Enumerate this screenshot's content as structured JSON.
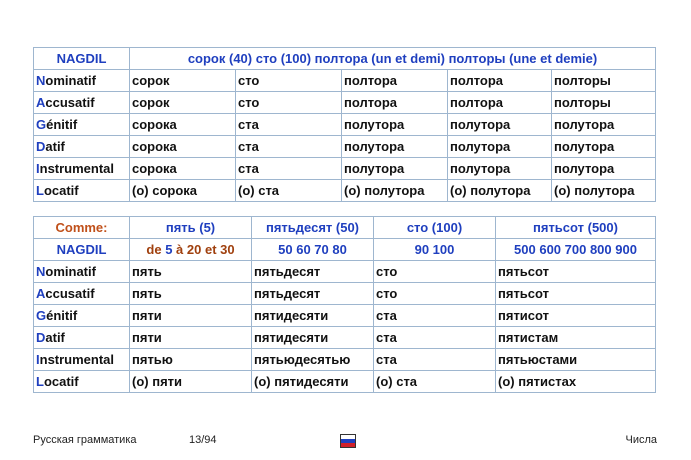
{
  "table1": {
    "header": [
      "NAGDIL",
      "сорок (40) сто (100) полтора (un et demi) полторы (une et demie)"
    ],
    "rows": [
      {
        "lead": "N",
        "case": "ominatif",
        "cells": [
          "сорок",
          "сто",
          "полтора",
          "полтора",
          "полторы"
        ]
      },
      {
        "lead": "A",
        "case": "ccusatif",
        "cells": [
          "сорок",
          "сто",
          "полтора",
          "полтора",
          "полторы"
        ]
      },
      {
        "lead": "G",
        "case": "énitif",
        "cells": [
          "сорока",
          "ста",
          "полутора",
          "полутора",
          "полутора"
        ]
      },
      {
        "lead": "D",
        "case": "atif",
        "cells": [
          "сорока",
          "ста",
          "полутора",
          "полутора",
          "полутора"
        ]
      },
      {
        "lead": "I",
        "case": "nstrumental",
        "cells": [
          "сорока",
          "ста",
          "полутора",
          "полутора",
          "полутора"
        ]
      },
      {
        "lead": "L",
        "case": "ocatif",
        "cells": [
          "(о) сорока",
          "(о) ста",
          "(о) полутора",
          "(о) полутора",
          "(о) полутора"
        ]
      }
    ]
  },
  "table2": {
    "comme_row": [
      "Comme:",
      "пять (5)",
      "пятьдесят (50)",
      "сто (100)",
      "пятьсот (500)"
    ],
    "nagdil_row": {
      "label": "NAGDIL",
      "c1_prefix": "de ",
      "c1_a": "5",
      "c1_mid": " à ",
      "c1_b": "20 et 30",
      "c2": "50 60 70 80",
      "c3": "90 100",
      "c4": "500 600 700 800 900"
    },
    "rows": [
      {
        "lead": "N",
        "case": "ominatif",
        "cells": [
          "пять",
          "пятьдесят",
          "сто",
          "пятьсот"
        ]
      },
      {
        "lead": "A",
        "case": "ccusatif",
        "cells": [
          "пять",
          "пятьдесят",
          "сто",
          "пятьсот"
        ]
      },
      {
        "lead": "G",
        "case": "énitif",
        "cells": [
          "пяти",
          "пятидесяти",
          "ста",
          "пятисот"
        ]
      },
      {
        "lead": "D",
        "case": "atif",
        "cells": [
          "пяти",
          "пятидесяти",
          "ста",
          "пятистам"
        ]
      },
      {
        "lead": "I",
        "case": "nstrumental",
        "cells": [
          "пятью",
          "пятьюдесятью",
          "ста",
          "пятьюстами"
        ]
      },
      {
        "lead": "L",
        "case": "ocatif",
        "cells": [
          "(о) пяти",
          "(о) пятидесяти",
          "(о) ста",
          "(о) пятистах"
        ]
      }
    ]
  },
  "footer": {
    "left": "Русская грамматика",
    "page": "13/94",
    "right": "Числа",
    "flag_icon": "russian-flag-icon",
    "flag_colors": [
      "#ffffff",
      "#1f3fbf",
      "#d0202a"
    ]
  }
}
